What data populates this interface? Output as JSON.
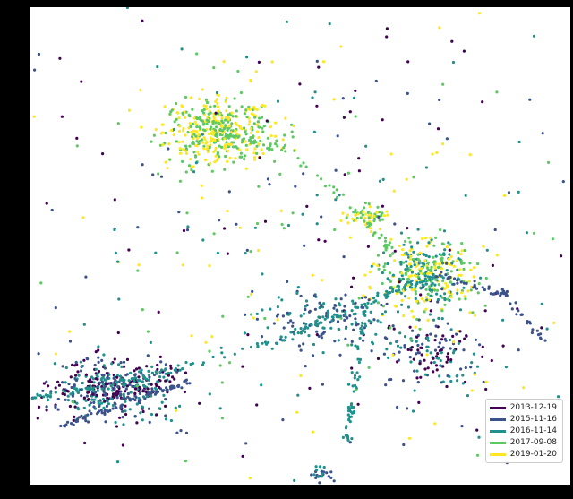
{
  "chart_data": {
    "type": "scatter",
    "title": "",
    "xlabel": "",
    "ylabel": "",
    "xlim": [
      0,
      100
    ],
    "ylim": [
      0,
      100
    ],
    "grid": false,
    "legend": "bottom-right",
    "colormap": "viridis",
    "series": [
      {
        "name": "2013-12-19",
        "color": "#440154"
      },
      {
        "name": "2015-11-16",
        "color": "#3b528b"
      },
      {
        "name": "2016-11-14",
        "color": "#21918c"
      },
      {
        "name": "2017-09-08",
        "color": "#5ec962"
      },
      {
        "name": "2019-01-20",
        "color": "#fde725"
      }
    ],
    "clusters": [
      {
        "cx": 35,
        "cy": 74,
        "sx": 5,
        "sy": 3.5,
        "n": 420,
        "series": [
          3,
          4
        ]
      },
      {
        "cx": 73,
        "cy": 44,
        "sx": 4.5,
        "sy": 4,
        "n": 380,
        "series": [
          2,
          3,
          4
        ]
      },
      {
        "cx": 62,
        "cy": 56,
        "sx": 2,
        "sy": 1.5,
        "n": 60,
        "series": [
          3,
          4
        ]
      },
      {
        "cx": 15,
        "cy": 20,
        "sx": 6,
        "sy": 3,
        "n": 420,
        "series": [
          0,
          1,
          2
        ]
      },
      {
        "cx": 55,
        "cy": 35,
        "sx": 6,
        "sy": 3,
        "n": 150,
        "series": [
          1,
          2
        ]
      },
      {
        "cx": 75,
        "cy": 28,
        "sx": 5,
        "sy": 4,
        "n": 160,
        "series": [
          0,
          1,
          2
        ]
      },
      {
        "cx": 50,
        "cy": 50,
        "sx": 30,
        "sy": 30,
        "n": 420,
        "series": [
          0,
          1,
          2,
          3,
          4
        ]
      },
      {
        "cx": 54,
        "cy": 2,
        "sx": 1,
        "sy": 1,
        "n": 25,
        "series": [
          1,
          2
        ]
      }
    ],
    "trails": [
      {
        "x": [
          0,
          20,
          45,
          62,
          75
        ],
        "y": [
          18,
          22,
          30,
          38,
          44
        ],
        "series": 2,
        "n": 160
      },
      {
        "x": [
          5,
          30
        ],
        "y": [
          12,
          22
        ],
        "series": 1,
        "n": 80
      },
      {
        "x": [
          62,
          60,
          58
        ],
        "y": [
          38,
          20,
          8
        ],
        "series": 2,
        "n": 60
      },
      {
        "x": [
          75,
          88,
          95
        ],
        "y": [
          44,
          40,
          30
        ],
        "series": 1,
        "n": 60
      },
      {
        "x": [
          28,
          40,
          48,
          58,
          68
        ],
        "y": [
          78,
          72,
          70,
          60,
          48
        ],
        "series": 3,
        "n": 90
      }
    ]
  }
}
